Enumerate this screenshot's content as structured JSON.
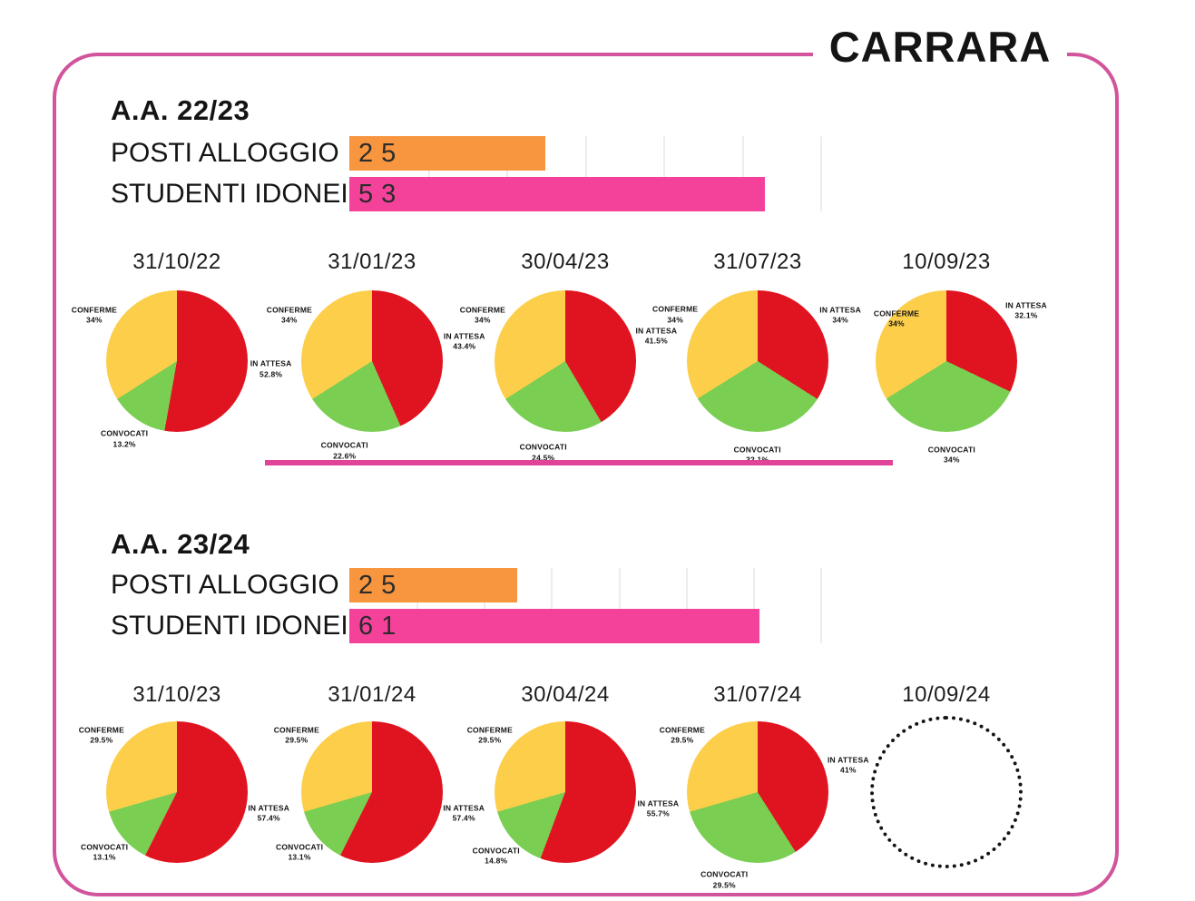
{
  "title": "CARRARA",
  "colors": {
    "accent_border": "#d2549c",
    "divider": "#e04498",
    "bar_orange": "#f7963f",
    "bar_pink": "#f4429b",
    "pie_red": "#e01420",
    "pie_yellow": "#fcce4a",
    "pie_green": "#7ace52",
    "grid": "#ededed",
    "text": "#141414"
  },
  "chart_data": {
    "type": "composite",
    "sections": [
      {
        "heading": "A.A. 22/23",
        "bar_chart": {
          "type": "bar",
          "orientation": "horizontal",
          "categories": [
            "POSTI ALLOGGIO",
            "STUDENTI IDONEI"
          ],
          "values": [
            25,
            53
          ],
          "value_labels": [
            "25",
            "53"
          ],
          "colors": [
            "#f7963f",
            "#f4429b"
          ],
          "xlim": [
            0,
            60
          ],
          "gridline_step": 10
        },
        "pie_charts": [
          {
            "type": "pie",
            "title": "31/10/22",
            "slices": [
              {
                "label": "IN ATTESA",
                "value": 52.8,
                "display": "52.8%",
                "color": "#e01420"
              },
              {
                "label": "CONVOCATI",
                "value": 13.2,
                "display": "13.2%",
                "color": "#7ace52"
              },
              {
                "label": "CONFERME",
                "value": 34,
                "display": "34%",
                "color": "#fcce4a"
              }
            ]
          },
          {
            "type": "pie",
            "title": "31/01/23",
            "slices": [
              {
                "label": "IN ATTESA",
                "value": 43.4,
                "display": "43.4%",
                "color": "#e01420"
              },
              {
                "label": "CONVOCATI",
                "value": 22.6,
                "display": "22.6%",
                "color": "#7ace52"
              },
              {
                "label": "CONFERME",
                "value": 34,
                "display": "34%",
                "color": "#fcce4a"
              }
            ]
          },
          {
            "type": "pie",
            "title": "30/04/23",
            "slices": [
              {
                "label": "IN ATTESA",
                "value": 41.5,
                "display": "41.5%",
                "color": "#e01420"
              },
              {
                "label": "CONVOCATI",
                "value": 24.5,
                "display": "24.5%",
                "color": "#7ace52"
              },
              {
                "label": "CONFERME",
                "value": 34,
                "display": "34%",
                "color": "#fcce4a"
              }
            ]
          },
          {
            "type": "pie",
            "title": "31/07/23",
            "slices": [
              {
                "label": "IN ATTESA",
                "value": 34,
                "display": "34%",
                "color": "#e01420"
              },
              {
                "label": "CONVOCATI",
                "value": 32.1,
                "display": "32.1%",
                "color": "#7ace52"
              },
              {
                "label": "CONFERME",
                "value": 34,
                "display": "34%",
                "color": "#fcce4a"
              }
            ]
          },
          {
            "type": "pie",
            "title": "10/09/23",
            "slices": [
              {
                "label": "IN ATTESA",
                "value": 32.1,
                "display": "32.1%",
                "color": "#e01420"
              },
              {
                "label": "CONVOCATI",
                "value": 34,
                "display": "34%",
                "color": "#7ace52"
              },
              {
                "label": "CONFERME",
                "value": 34,
                "display": "34%",
                "color": "#fcce4a",
                "label_at": [
                  -55,
                  -46
                ]
              }
            ]
          }
        ]
      },
      {
        "heading": "A.A. 23/24",
        "bar_chart": {
          "type": "bar",
          "orientation": "horizontal",
          "categories": [
            "POSTI ALLOGGIO",
            "STUDENTI IDONEI"
          ],
          "values": [
            25,
            61
          ],
          "value_labels": [
            "25",
            "61"
          ],
          "colors": [
            "#f7963f",
            "#f4429b"
          ],
          "xlim": [
            0,
            70
          ],
          "gridline_step": 10
        },
        "pie_charts": [
          {
            "type": "pie",
            "title": "31/10/23",
            "slices": [
              {
                "label": "IN ATTESA",
                "value": 57.4,
                "display": "57.4%",
                "color": "#e01420"
              },
              {
                "label": "CONVOCATI",
                "value": 13.1,
                "display": "13.1%",
                "color": "#7ace52"
              },
              {
                "label": "CONFERME",
                "value": 29.5,
                "display": "29.5%",
                "color": "#fcce4a"
              }
            ]
          },
          {
            "type": "pie",
            "title": "31/01/24",
            "slices": [
              {
                "label": "IN ATTESA",
                "value": 57.4,
                "display": "57.4%",
                "color": "#e01420"
              },
              {
                "label": "CONVOCATI",
                "value": 13.1,
                "display": "13.1%",
                "color": "#7ace52"
              },
              {
                "label": "CONFERME",
                "value": 29.5,
                "display": "29.5%",
                "color": "#fcce4a"
              }
            ]
          },
          {
            "type": "pie",
            "title": "30/04/24",
            "slices": [
              {
                "label": "IN ATTESA",
                "value": 55.7,
                "display": "55.7%",
                "color": "#e01420"
              },
              {
                "label": "CONVOCATI",
                "value": 14.8,
                "display": "14.8%",
                "color": "#7ace52"
              },
              {
                "label": "CONFERME",
                "value": 29.5,
                "display": "29.5%",
                "color": "#fcce4a"
              }
            ]
          },
          {
            "type": "pie",
            "title": "31/07/24",
            "slices": [
              {
                "label": "IN ATTESA",
                "value": 41,
                "display": "41%",
                "color": "#e01420"
              },
              {
                "label": "CONVOCATI",
                "value": 29.5,
                "display": "29.5%",
                "color": "#7ace52"
              },
              {
                "label": "CONFERME",
                "value": 29.5,
                "display": "29.5%",
                "color": "#fcce4a"
              }
            ]
          },
          {
            "type": "pie",
            "title": "10/09/24",
            "empty": true,
            "slices": []
          }
        ]
      }
    ]
  }
}
